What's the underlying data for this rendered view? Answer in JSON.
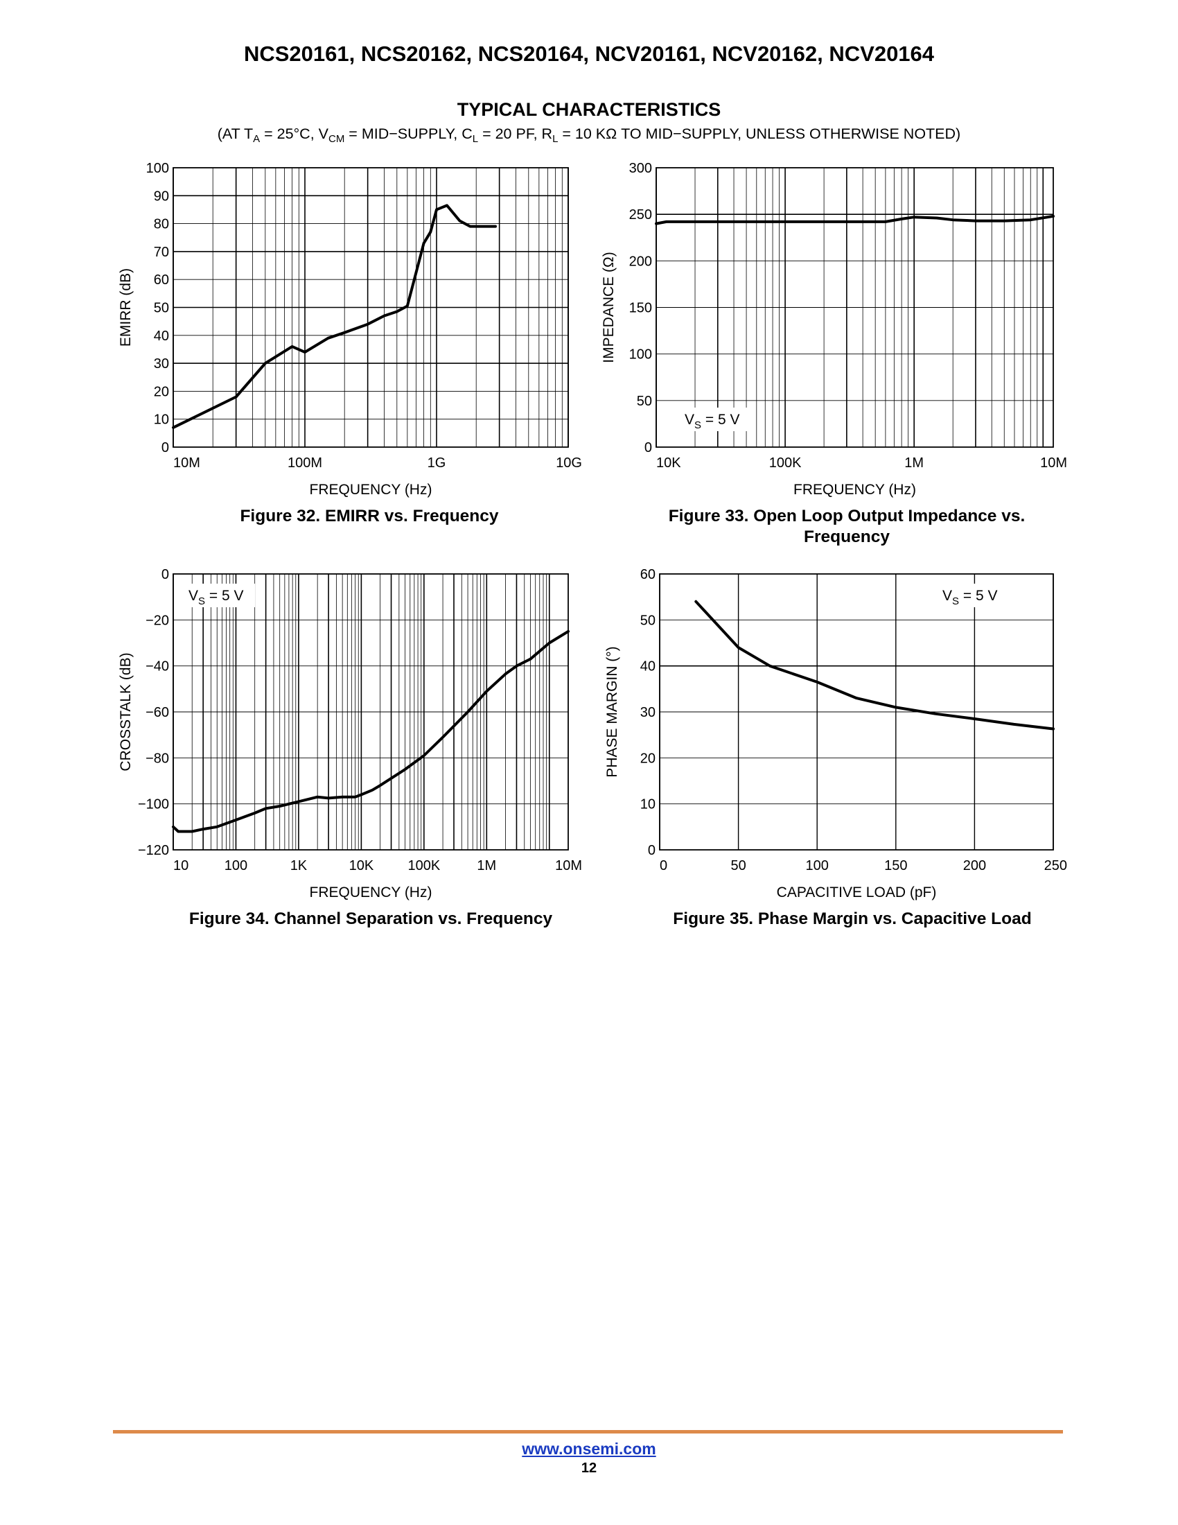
{
  "header": {
    "title": "NCS20161, NCS20162, NCS20164, NCV20161, NCV20162, NCV20164",
    "section_title": "TYPICAL CHARACTERISTICS",
    "conditions": {
      "p1": "(AT T",
      "s1": "A",
      "p2": " = 25°C, V",
      "s2": "CM",
      "p3": " = MID−SUPPLY, C",
      "s3": "L",
      "p4": " = 20 PF, R",
      "s4": "L",
      "p5": " = 10 KΩ TO MID−SUPPLY, UNLESS OTHERWISE NOTED)"
    }
  },
  "figures": {
    "fig32": {
      "caption": "Figure 32. EMIRR vs. Frequency"
    },
    "fig33": {
      "caption": "Figure 33. Open Loop Output Impedance vs. Frequency"
    },
    "fig34": {
      "caption": "Figure 34. Channel Separation vs. Frequency"
    },
    "fig35": {
      "caption": "Figure 35. Phase Margin vs. Capacitive Load"
    }
  },
  "footer": {
    "url": "www.onsemi.com",
    "page": "12"
  },
  "chart_data": [
    {
      "id": "fig32",
      "type": "line",
      "xscale": "log",
      "xlim": [
        10000000,
        10000000000
      ],
      "ylim": [
        0,
        100
      ],
      "xlabel": "FREQUENCY (Hz)",
      "ylabel": "EMIRR (dB)",
      "xticks": [
        [
          10000000,
          "10M"
        ],
        [
          100000000,
          "100M"
        ],
        [
          1000000000,
          "1G"
        ],
        [
          10000000000,
          "10G"
        ]
      ],
      "yticks": [
        [
          0,
          "0"
        ],
        [
          10,
          "10"
        ],
        [
          20,
          "20"
        ],
        [
          30,
          "30"
        ],
        [
          40,
          "40"
        ],
        [
          50,
          "50"
        ],
        [
          60,
          "60"
        ],
        [
          70,
          "70"
        ],
        [
          80,
          "80"
        ],
        [
          90,
          "90"
        ],
        [
          100,
          "100"
        ]
      ],
      "grid": true,
      "series": [
        {
          "x": [
            10000000,
            30000000,
            50000000,
            80000000,
            100000000,
            150000000,
            200000000,
            300000000,
            400000000,
            500000000,
            600000000,
            800000000,
            900000000,
            1000000000,
            1200000000,
            1500000000,
            1800000000,
            2000000000,
            2200000000,
            2500000000,
            2800000000
          ],
          "y": [
            7,
            18,
            30,
            36,
            34,
            39,
            41,
            44,
            47,
            48.5,
            50.5,
            73,
            77,
            85,
            86.5,
            81,
            79,
            79,
            79,
            79,
            79
          ]
        }
      ],
      "annotations": []
    },
    {
      "id": "fig33",
      "type": "line",
      "xscale": "log",
      "xlim": [
        10000,
        12000000
      ],
      "ylim": [
        0,
        300
      ],
      "xlabel": "FREQUENCY (Hz)",
      "ylabel": "IMPEDANCE (Ω)",
      "xticks": [
        [
          10000,
          "10K"
        ],
        [
          100000,
          "100K"
        ],
        [
          1000000,
          "1M"
        ],
        [
          10000000,
          "10M"
        ]
      ],
      "yticks": [
        [
          0,
          "0"
        ],
        [
          50,
          "50"
        ],
        [
          100,
          "100"
        ],
        [
          150,
          "150"
        ],
        [
          200,
          "200"
        ],
        [
          250,
          "250"
        ],
        [
          300,
          "300"
        ]
      ],
      "grid": true,
      "series": [
        {
          "x": [
            10000,
            12000,
            20000,
            50000,
            100000,
            200000,
            400000,
            600000,
            800000,
            1000000,
            1500000,
            2000000,
            3000000,
            5000000,
            8000000,
            12000000
          ],
          "y": [
            240,
            242,
            242,
            242,
            242,
            242,
            242,
            242,
            245,
            247,
            246,
            244,
            243,
            243,
            244,
            248
          ]
        }
      ],
      "annotations": [
        {
          "main": "V",
          "sub": "S",
          "rest": " = 5 V"
        }
      ]
    },
    {
      "id": "fig34",
      "type": "line",
      "xscale": "log",
      "xlim": [
        10,
        20000000
      ],
      "ylim": [
        -120,
        0
      ],
      "xlabel": "FREQUENCY (Hz)",
      "ylabel": "CROSSTALK (dB)",
      "xticks": [
        [
          10,
          "10"
        ],
        [
          100,
          "100"
        ],
        [
          1000,
          "1K"
        ],
        [
          10000,
          "10K"
        ],
        [
          100000,
          "100K"
        ],
        [
          1000000,
          "1M"
        ],
        [
          10000000,
          "10M"
        ]
      ],
      "yticks": [
        [
          0,
          "0"
        ],
        [
          -20,
          "−20"
        ],
        [
          -40,
          "−40"
        ],
        [
          -60,
          "−60"
        ],
        [
          -80,
          "−80"
        ],
        [
          -100,
          "−100"
        ],
        [
          -120,
          "−120"
        ]
      ],
      "grid": true,
      "series": [
        {
          "x": [
            10,
            12,
            15,
            20,
            30,
            50,
            100,
            200,
            300,
            500,
            1000,
            2000,
            3000,
            5000,
            8000,
            10000,
            15000,
            20000,
            50000,
            100000,
            200000,
            500000,
            1000000,
            2000000,
            3000000,
            5000000,
            10000000,
            20000000
          ],
          "y": [
            -110,
            -112,
            -112,
            -112,
            -111,
            -110,
            -107,
            -104,
            -102,
            -101,
            -99,
            -97,
            -97.5,
            -97,
            -97,
            -96,
            -94,
            -92,
            -85,
            -79,
            -71,
            -60,
            -51,
            -43.5,
            -40,
            -37,
            -30,
            -25
          ]
        }
      ],
      "annotations": [
        {
          "main": "V",
          "sub": "S",
          "rest": " = 5 V"
        }
      ]
    },
    {
      "id": "fig35",
      "type": "line",
      "xscale": "linear",
      "xlim": [
        0,
        250
      ],
      "ylim": [
        0,
        60
      ],
      "xlabel": "CAPACITIVE LOAD (pF)",
      "ylabel": "PHASE MARGIN (°)",
      "xticks": [
        [
          0,
          "0"
        ],
        [
          50,
          "50"
        ],
        [
          100,
          "100"
        ],
        [
          150,
          "150"
        ],
        [
          200,
          "200"
        ],
        [
          250,
          "250"
        ]
      ],
      "yticks": [
        [
          0,
          "0"
        ],
        [
          10,
          "10"
        ],
        [
          20,
          "20"
        ],
        [
          30,
          "30"
        ],
        [
          40,
          "40"
        ],
        [
          50,
          "50"
        ],
        [
          60,
          "60"
        ]
      ],
      "grid": true,
      "series": [
        {
          "x": [
            23,
            50,
            70,
            100,
            125,
            150,
            175,
            200,
            225,
            250
          ],
          "y": [
            54,
            44,
            40,
            36.5,
            33,
            31,
            29.6,
            28.5,
            27.3,
            26.3
          ]
        }
      ],
      "annotations": [
        {
          "main": "V",
          "sub": "S",
          "rest": " = 5 V"
        }
      ]
    }
  ]
}
